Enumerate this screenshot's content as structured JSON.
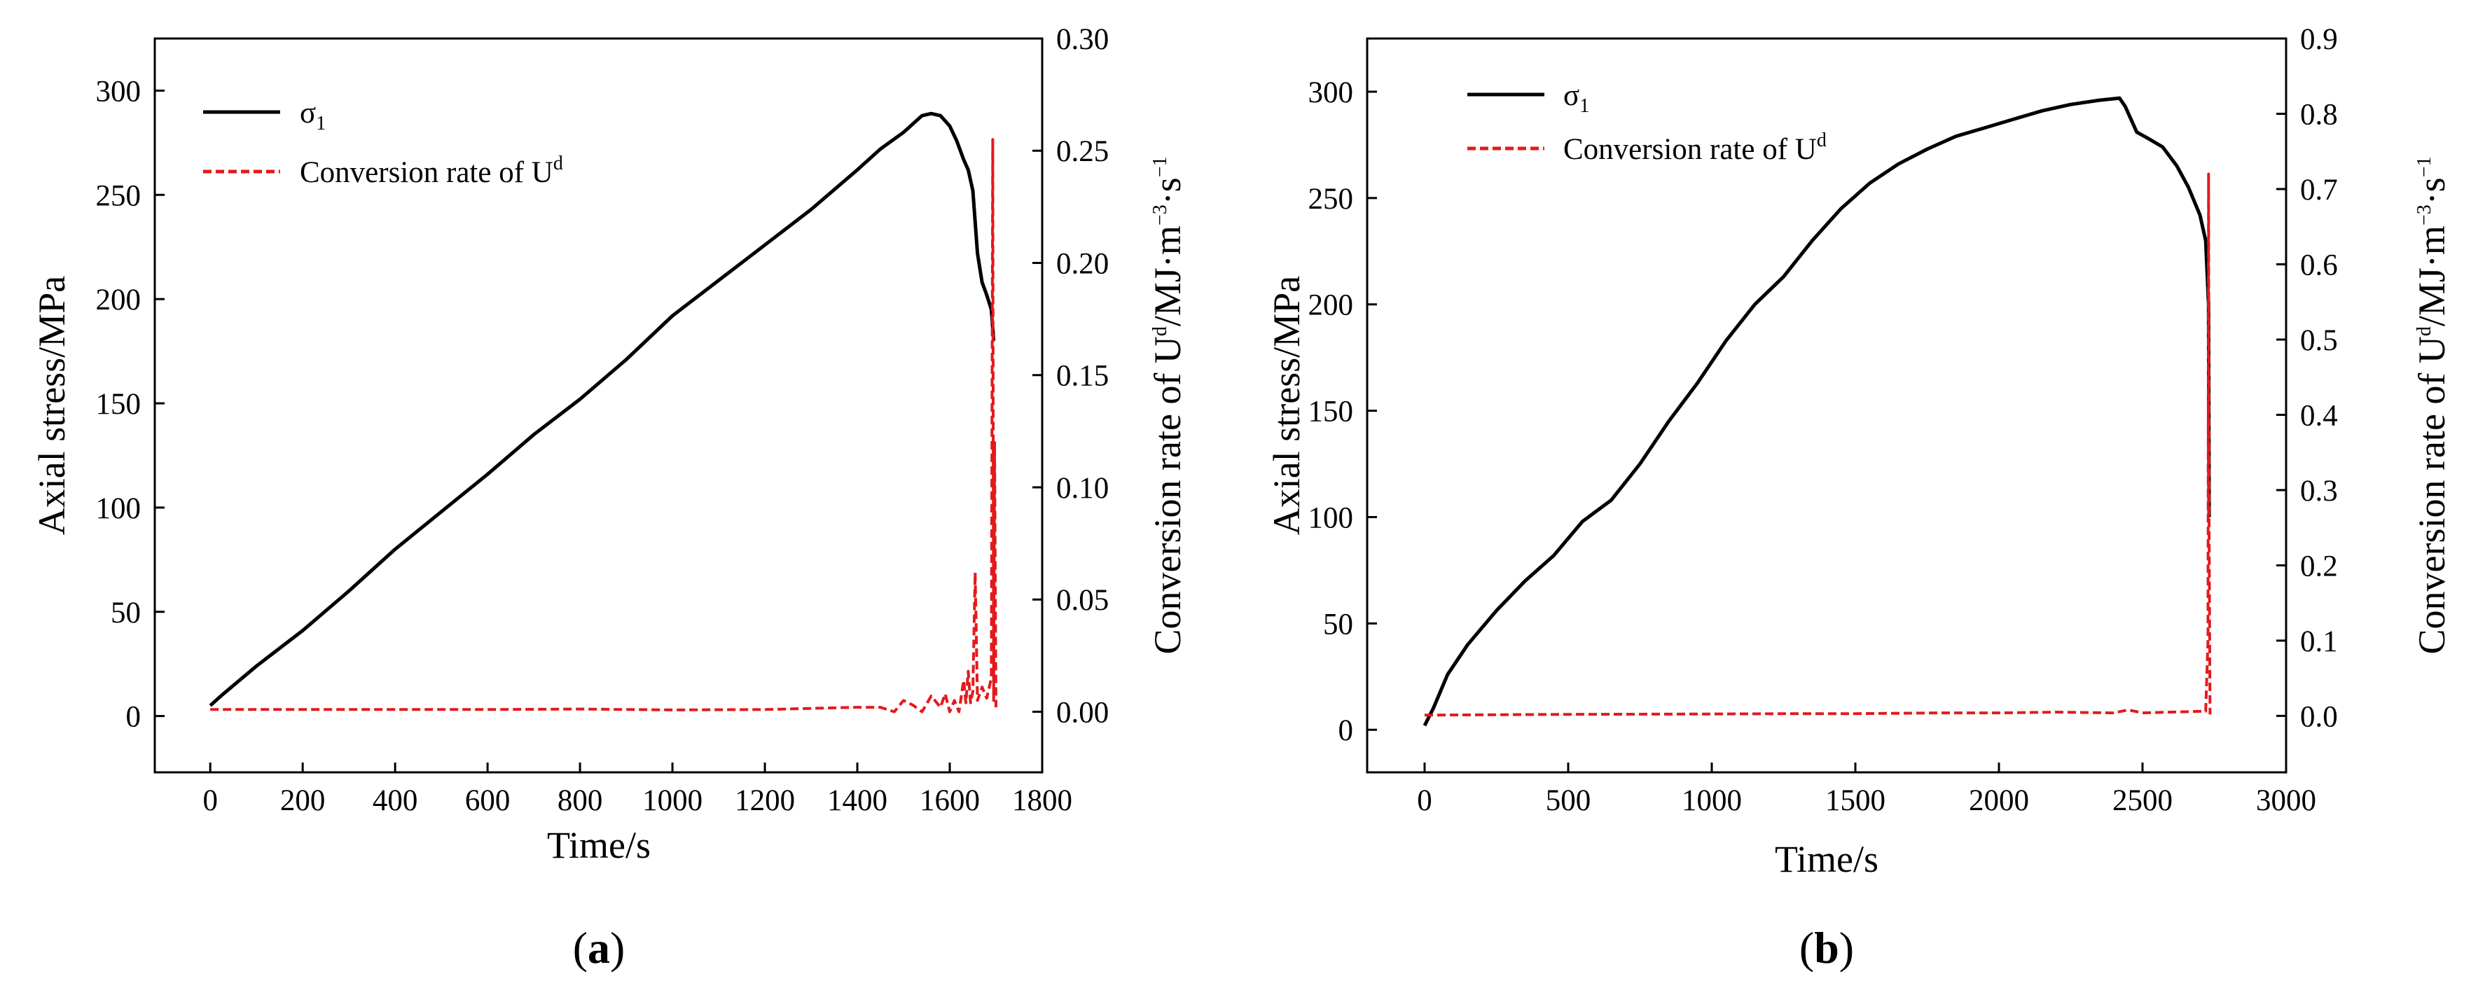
{
  "chart_data": [
    {
      "type": "line",
      "panel_label": "a",
      "xlabel": "Time/s",
      "ylabel": "Axial stress/MPa",
      "y2label_base": "Conversion rate of U",
      "y2label_sup1": "d",
      "y2label_unit": "/MJ·m",
      "y2label_sup2": "−3",
      "y2label_mid": "·s",
      "y2label_sup3": "−1",
      "xlim": [
        -120,
        1800
      ],
      "ylim": [
        -27,
        325
      ],
      "y2lim": [
        -0.027,
        0.3
      ],
      "xticks": [
        "0",
        "200",
        "400",
        "600",
        "800",
        "1000",
        "1200",
        "1400",
        "1600",
        "1800"
      ],
      "xtick_values": [
        0,
        200,
        400,
        600,
        800,
        1000,
        1200,
        1400,
        1600,
        1800
      ],
      "yticks": [
        "0",
        "50",
        "100",
        "150",
        "200",
        "250",
        "300"
      ],
      "ytick_values": [
        0,
        50,
        100,
        150,
        200,
        250,
        300
      ],
      "y2ticks": [
        "0.00",
        "0.05",
        "0.10",
        "0.15",
        "0.20",
        "0.25",
        "0.30"
      ],
      "y2tick_values": [
        0,
        0.05,
        0.1,
        0.15,
        0.2,
        0.25,
        0.3
      ],
      "legend": {
        "s1_main": "σ",
        "s1_sub": "1",
        "s2_main": "Conversion rate of U",
        "s2_sup": "d"
      },
      "series": [
        {
          "name": "σ1",
          "axis": "left",
          "color": "#000000",
          "x": [
            0,
            25,
            100,
            200,
            300,
            400,
            500,
            600,
            700,
            800,
            900,
            1000,
            1100,
            1200,
            1300,
            1400,
            1450,
            1500,
            1540,
            1560,
            1580,
            1600,
            1615,
            1630,
            1640,
            1650,
            1660,
            1670,
            1680,
            1690,
            1695
          ],
          "values": [
            5,
            10,
            24,
            41,
            60,
            80,
            98,
            116,
            135,
            152,
            171,
            192,
            209,
            226,
            243,
            262,
            272,
            280,
            288,
            289,
            288,
            283,
            276,
            267,
            262,
            252,
            222,
            208,
            202,
            195,
            180
          ]
        },
        {
          "name": "Conversion rate of Ud",
          "axis": "right",
          "color": "#e31a1c",
          "style": "dashed",
          "x": [
            0,
            200,
            400,
            600,
            800,
            1000,
            1200,
            1400,
            1450,
            1480,
            1500,
            1520,
            1540,
            1560,
            1580,
            1590,
            1600,
            1610,
            1620,
            1630,
            1635,
            1640,
            1645,
            1650,
            1655,
            1660,
            1670,
            1680,
            1690,
            1693,
            1695,
            1697,
            1700
          ],
          "values": [
            0.001,
            0.001,
            0.001,
            0.001,
            0.0012,
            0.0008,
            0.001,
            0.002,
            0.002,
            0.0,
            0.005,
            0.003,
            0.0,
            0.007,
            0.002,
            0.008,
            0.0,
            0.005,
            0.0,
            0.014,
            0.004,
            0.018,
            0.004,
            0.009,
            0.062,
            0.005,
            0.011,
            0.006,
            0.015,
            0.255,
            0.005,
            0.12,
            0.002
          ]
        }
      ]
    },
    {
      "type": "line",
      "panel_label": "b",
      "xlabel": "Time/s",
      "ylabel": "Axial stress/MPa",
      "y2label_base": "Conversion rate of U",
      "y2label_sup1": "d",
      "y2label_unit": "/MJ·m",
      "y2label_sup2": "−3",
      "y2label_mid": "·s",
      "y2label_sup3": "−1",
      "xlim": [
        -200,
        3000
      ],
      "ylim": [
        -20,
        325
      ],
      "y2lim": [
        -0.075,
        0.9
      ],
      "xticks": [
        "0",
        "500",
        "1000",
        "1500",
        "2000",
        "2500",
        "3000"
      ],
      "xtick_values": [
        0,
        500,
        1000,
        1500,
        2000,
        2500,
        3000
      ],
      "yticks": [
        "0",
        "50",
        "100",
        "150",
        "200",
        "250",
        "300"
      ],
      "ytick_values": [
        0,
        50,
        100,
        150,
        200,
        250,
        300
      ],
      "y2ticks": [
        "0.0",
        "0.1",
        "0.2",
        "0.3",
        "0.4",
        "0.5",
        "0.6",
        "0.7",
        "0.8",
        "0.9"
      ],
      "y2tick_values": [
        0,
        0.1,
        0.2,
        0.3,
        0.4,
        0.5,
        0.6,
        0.7,
        0.8,
        0.9
      ],
      "legend": {
        "s1_main": "σ",
        "s1_sub": "1",
        "s2_main": "Conversion rate of U",
        "s2_sup": "d"
      },
      "series": [
        {
          "name": "σ1",
          "axis": "left",
          "color": "#000000",
          "x": [
            0,
            30,
            80,
            150,
            250,
            350,
            450,
            550,
            650,
            750,
            850,
            950,
            1050,
            1150,
            1250,
            1350,
            1450,
            1550,
            1650,
            1750,
            1850,
            1950,
            2050,
            2150,
            2250,
            2350,
            2420,
            2440,
            2480,
            2520,
            2570,
            2620,
            2660,
            2700,
            2720,
            2730,
            2732
          ],
          "values": [
            2,
            10,
            26,
            40,
            56,
            70,
            82,
            98,
            108,
            125,
            145,
            163,
            183,
            200,
            213,
            230,
            245,
            257,
            266,
            273,
            279,
            283,
            287,
            291,
            294,
            296,
            297,
            293,
            281,
            278,
            274,
            265,
            255,
            242,
            230,
            200,
            100
          ]
        },
        {
          "name": "Conversion rate of Ud",
          "axis": "right",
          "color": "#e31a1c",
          "style": "dashed",
          "x": [
            0,
            500,
            1000,
            1300,
            1500,
            1800,
            2000,
            2200,
            2400,
            2450,
            2500,
            2600,
            2700,
            2720,
            2728,
            2730,
            2732,
            2735
          ],
          "values": [
            0.001,
            0.002,
            0.0025,
            0.003,
            0.003,
            0.004,
            0.004,
            0.005,
            0.004,
            0.008,
            0.004,
            0.005,
            0.006,
            0.006,
            0.1,
            0.72,
            0.25,
            0.002
          ]
        }
      ]
    }
  ]
}
